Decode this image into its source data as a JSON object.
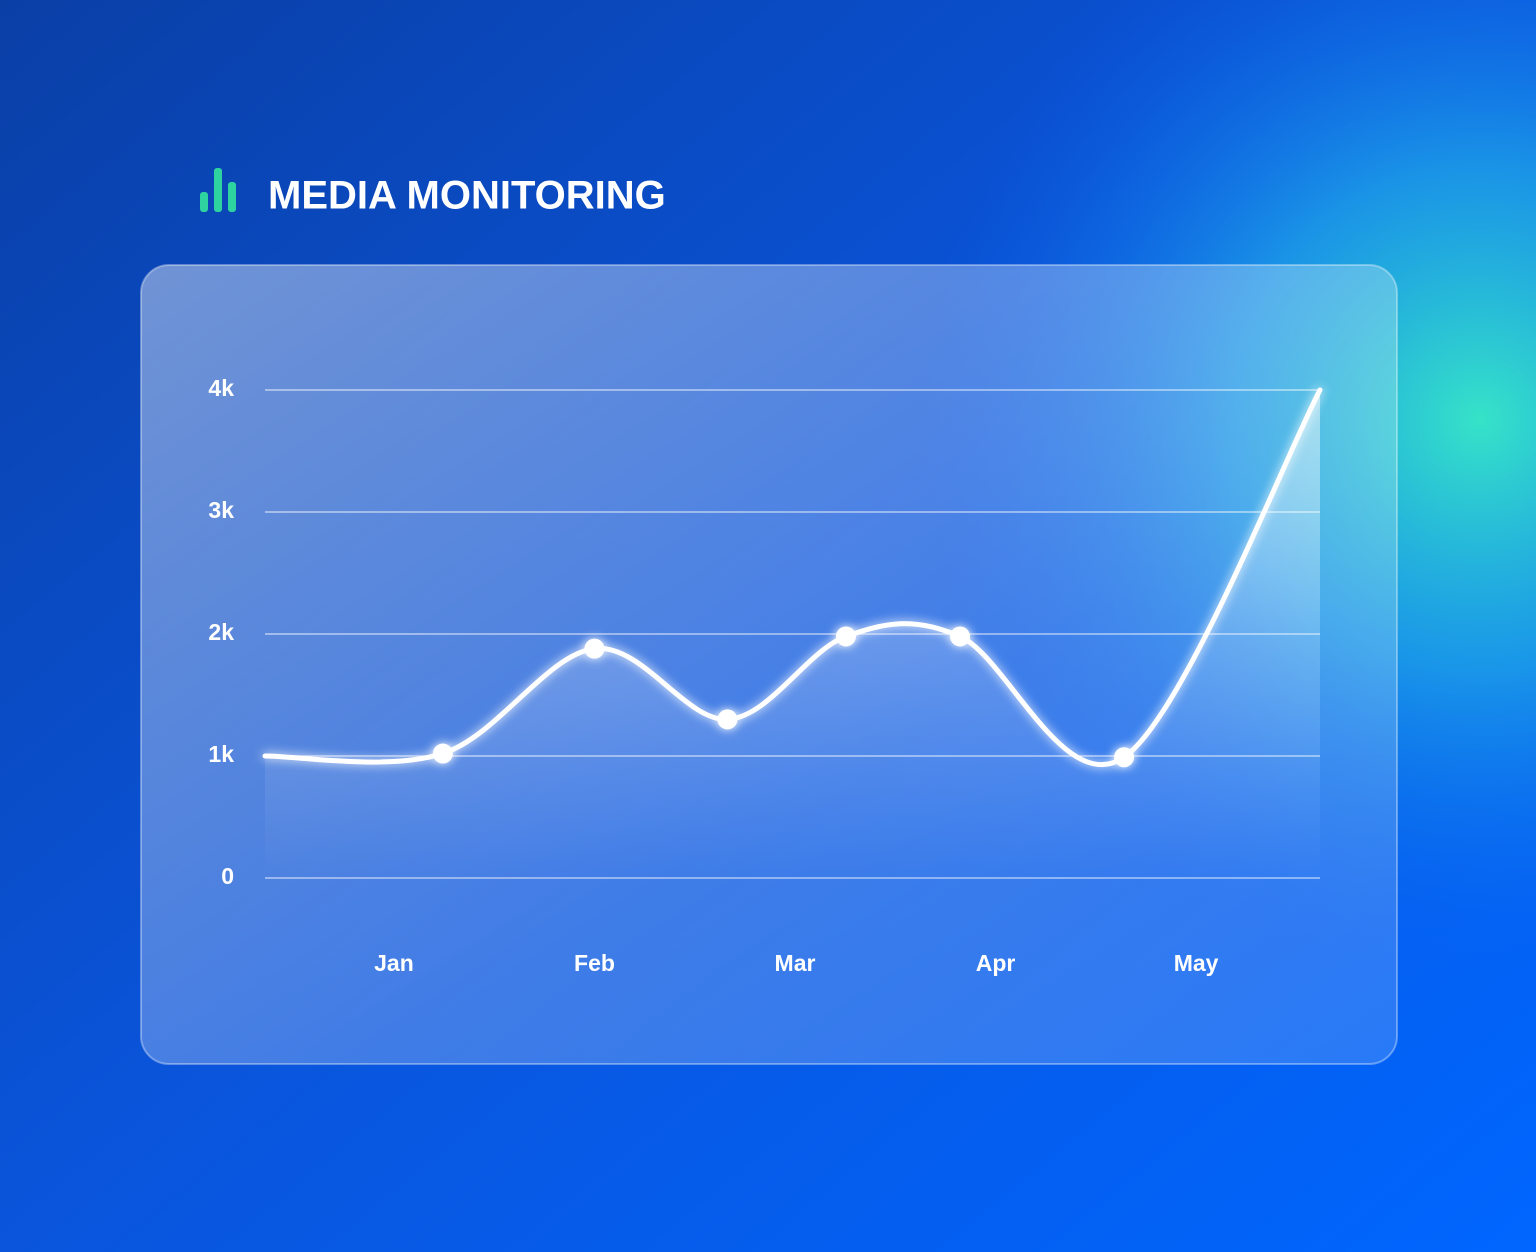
{
  "chart_data": {
    "type": "line",
    "title": "MEDIA MONITORING",
    "x": [
      0.357,
      1.244,
      2.0,
      2.663,
      3.254,
      3.823,
      4.641,
      5.618
    ],
    "values": [
      1000,
      1020,
      1880,
      1300,
      1980,
      1980,
      990,
      4000
    ],
    "color": "#ffffff",
    "xlim": [
      0.357,
      5.618
    ],
    "xticks": [
      {
        "value": 1,
        "label": "Jan"
      },
      {
        "value": 2,
        "label": "Feb"
      },
      {
        "value": 3,
        "label": "Mar"
      },
      {
        "value": 4,
        "label": "Apr"
      },
      {
        "value": 5,
        "label": "May"
      }
    ],
    "ylim": [
      0,
      4000
    ],
    "yticks": [
      0,
      {
        "value": 1000,
        "label": "1k"
      },
      {
        "value": 2000,
        "label": "2k"
      },
      {
        "value": 3000,
        "label": "3k"
      },
      {
        "value": 4000,
        "label": "4k"
      }
    ],
    "grid": true
  }
}
